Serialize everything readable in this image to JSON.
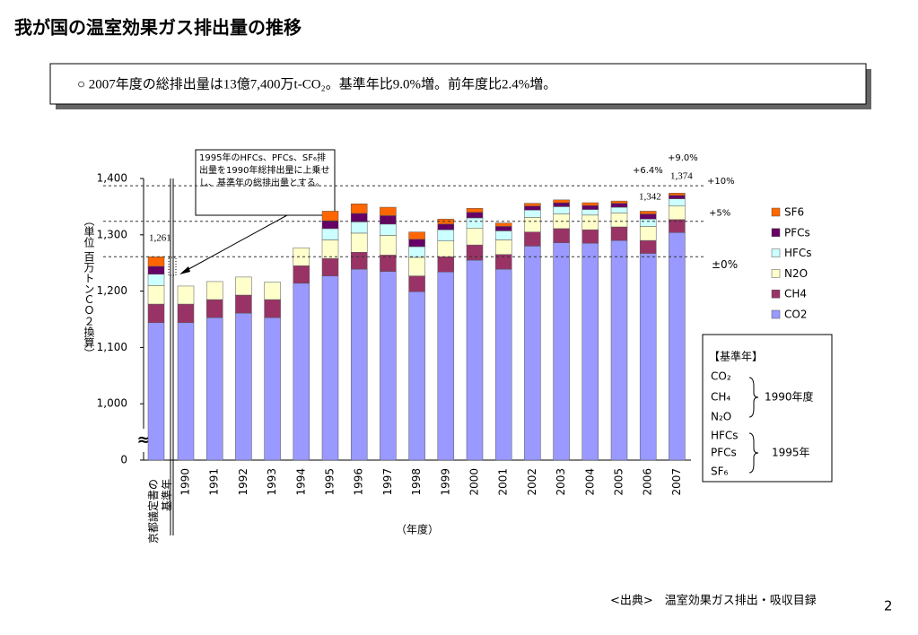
{
  "header": {
    "title": "我が国の温室効果ガス排出量の推移",
    "summary": "○ 2007年度の総排出量は13億7,400万t-CO₂。基準年比9.0%増。前年度比2.4%増。"
  },
  "chart_data": {
    "type": "stacked_bar",
    "y_label": "（単位 百万トンＣＯ２換算）",
    "x_label": "（年度）",
    "categories": [
      "京都議定書の基準年",
      "1990",
      "1991",
      "1992",
      "1993",
      "1994",
      "1995",
      "1996",
      "1997",
      "1998",
      "1999",
      "2000",
      "2001",
      "2002",
      "2003",
      "2004",
      "2005",
      "2006",
      "2007"
    ],
    "series": [
      {
        "name": "CO2",
        "color": "#9999ff",
        "values": [
          1144,
          1144,
          1153,
          1161,
          1153,
          1214,
          1227,
          1239,
          1235,
          1199,
          1234,
          1255,
          1239,
          1280,
          1286,
          1285,
          1290,
          1267,
          1304
        ]
      },
      {
        "name": "CH4",
        "color": "#993366",
        "values": [
          33,
          33,
          32,
          32,
          32,
          31,
          31,
          30,
          29,
          28,
          27,
          27,
          26,
          25,
          25,
          24,
          24,
          23,
          23
        ]
      },
      {
        "name": "N2O",
        "color": "#ffffcc",
        "values": [
          33,
          32,
          32,
          32,
          31,
          32,
          33,
          34,
          35,
          33,
          28,
          30,
          26,
          26,
          26,
          26,
          25,
          25,
          24
        ]
      },
      {
        "name": "HFCs",
        "color": "#ccffff",
        "values": [
          20,
          null,
          null,
          null,
          null,
          null,
          20,
          20,
          20,
          19,
          20,
          18,
          16,
          13,
          13,
          10,
          10,
          13,
          13
        ]
      },
      {
        "name": "PFCs",
        "color": "#660066",
        "values": [
          14,
          null,
          null,
          null,
          null,
          null,
          14,
          15,
          15,
          13,
          10,
          10,
          8,
          7,
          7,
          7,
          7,
          9,
          6
        ]
      },
      {
        "name": "SF6",
        "color": "#ff6600",
        "values": [
          17,
          null,
          null,
          null,
          null,
          null,
          17,
          17,
          15,
          13,
          9,
          7,
          6,
          5,
          5,
          5,
          4,
          5,
          4
        ]
      }
    ],
    "ylim": [
      0,
      1400
    ],
    "yticks": [
      0,
      {
        "value": 1000,
        "label": "1,000"
      },
      {
        "value": 1100,
        "label": "1,100"
      },
      {
        "value": 1200,
        "label": "1,200"
      },
      {
        "value": 1300,
        "label": "1,300"
      },
      {
        "value": 1400,
        "label": "1,400"
      }
    ],
    "axis_break": true,
    "axis_break_symbol": "≈",
    "reference_lines": [
      {
        "value": 1261,
        "label": "±0%"
      },
      {
        "value": 1324,
        "label": "+5%"
      },
      {
        "value": 1387,
        "label": "+10%"
      }
    ],
    "annotations": [
      {
        "text": "1,261"
      },
      {
        "text": "+6.4%"
      },
      {
        "text": "1,342"
      },
      {
        "text": "+9.0%"
      },
      {
        "text": "1,374"
      }
    ],
    "callout": "1995年のHFCs、PFCs、SF₆排出量を1990年総排出量に上乗せし、基準年の総排出量とする。",
    "legend": "right",
    "base_year_box": {
      "title": "【基準年】",
      "groups": [
        {
          "gases": [
            "CO₂",
            "CH₄",
            "N₂O"
          ],
          "label": "1990年度"
        },
        {
          "gases": [
            "HFCs",
            "PFCs",
            "SF₆"
          ],
          "label": "1995年"
        }
      ]
    }
  },
  "footer": {
    "source": "<出典>　温室効果ガス排出・吸収目録",
    "page": "2"
  }
}
